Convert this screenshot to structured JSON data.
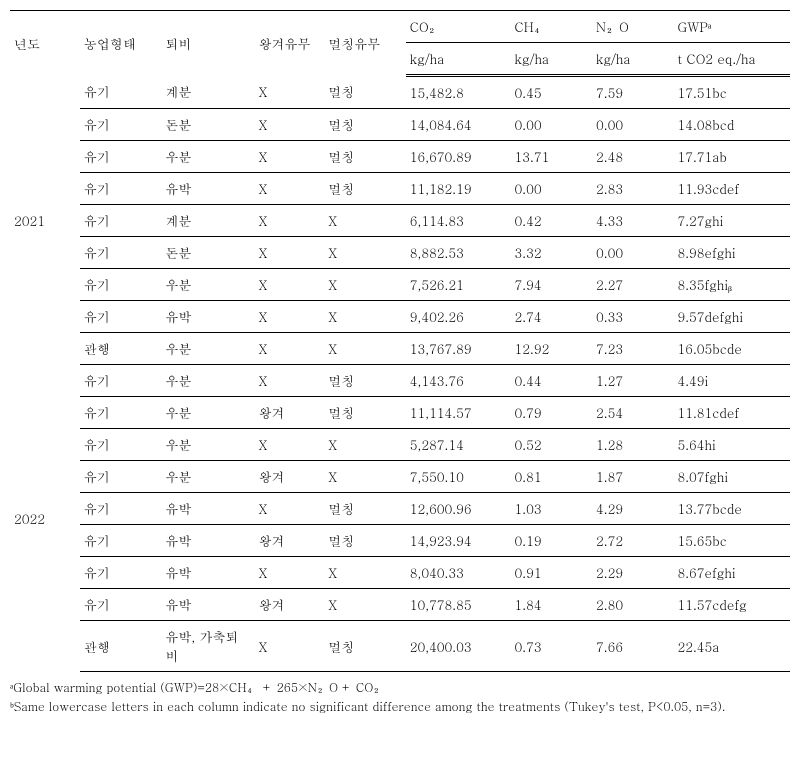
{
  "headers": {
    "year": "년도",
    "farm_type": "농업형태",
    "compost": "퇴비",
    "husk": "왕겨유무",
    "mulching": "멀칭유무",
    "co2_top": "CO₂",
    "ch4_top": "CH₄",
    "n2o_top": "N₂O",
    "gwp_top": "GWPᵃ",
    "kgha": "kg/ha",
    "gwp_unit": "t CO2 eq./ha"
  },
  "groups": [
    {
      "year": "2021",
      "rows": [
        {
          "farm": "유기",
          "compost": "계분",
          "husk": "X",
          "mulch": "멀칭",
          "co2": "15,482.8",
          "ch4": "0.45",
          "n2o": "7.59",
          "gwp": "17.51bc"
        },
        {
          "farm": "유기",
          "compost": "돈분",
          "husk": "X",
          "mulch": "멀칭",
          "co2": "14,084.64",
          "ch4": "0.00",
          "n2o": "0.00",
          "gwp": "14.08bcd"
        },
        {
          "farm": "유기",
          "compost": "우분",
          "husk": "X",
          "mulch": "멀칭",
          "co2": "16,670.89",
          "ch4": "13.71",
          "n2o": "2.48",
          "gwp": "17.71ab"
        },
        {
          "farm": "유기",
          "compost": "유박",
          "husk": "X",
          "mulch": "멀칭",
          "co2": "11,182.19",
          "ch4": "0.00",
          "n2o": "2.83",
          "gwp": "11.93cdef"
        },
        {
          "farm": "유기",
          "compost": "계분",
          "husk": "X",
          "mulch": "X",
          "co2": "6,114.83",
          "ch4": "0.42",
          "n2o": "4.33",
          "gwp": "7.27ghi"
        },
        {
          "farm": "유기",
          "compost": "돈분",
          "husk": "X",
          "mulch": "X",
          "co2": "8,882.53",
          "ch4": "3.32",
          "n2o": "0.00",
          "gwp": "8.98efghi"
        },
        {
          "farm": "유기",
          "compost": "우분",
          "husk": "X",
          "mulch": "X",
          "co2": "7,526.21",
          "ch4": "7.94",
          "n2o": "2.27",
          "gwp": "8.35fghiᵦ"
        },
        {
          "farm": "유기",
          "compost": "유박",
          "husk": "X",
          "mulch": "X",
          "co2": "9,402.26",
          "ch4": "2.74",
          "n2o": "0.33",
          "gwp": "9.57defghi"
        },
        {
          "farm": "관행",
          "compost": "우분",
          "husk": "X",
          "mulch": "X",
          "co2": "13,767.89",
          "ch4": "12.92",
          "n2o": "7.23",
          "gwp": "16.05bcde"
        }
      ]
    },
    {
      "year": "2022",
      "rows": [
        {
          "farm": "유기",
          "compost": "우분",
          "husk": "X",
          "mulch": "멀칭",
          "co2": "4,143.76",
          "ch4": "0.44",
          "n2o": "1.27",
          "gwp": "4.49i"
        },
        {
          "farm": "유기",
          "compost": "우분",
          "husk": "왕겨",
          "mulch": "멀칭",
          "co2": "11,114.57",
          "ch4": "0.79",
          "n2o": "2.54",
          "gwp": "11.81cdef"
        },
        {
          "farm": "유기",
          "compost": "우분",
          "husk": "X",
          "mulch": "X",
          "co2": "5,287.14",
          "ch4": "0.52",
          "n2o": "1.28",
          "gwp": "5.64hi"
        },
        {
          "farm": "유기",
          "compost": "우분",
          "husk": "왕겨",
          "mulch": "X",
          "co2": "7,550.10",
          "ch4": "0.81",
          "n2o": "1.87",
          "gwp": "8.07fghi"
        },
        {
          "farm": "유기",
          "compost": "유박",
          "husk": "X",
          "mulch": "멀칭",
          "co2": "12,600.96",
          "ch4": "1.03",
          "n2o": "4.29",
          "gwp": "13.77bcde"
        },
        {
          "farm": "유기",
          "compost": "유박",
          "husk": "왕겨",
          "mulch": "멀칭",
          "co2": "14,923.94",
          "ch4": "0.19",
          "n2o": "2.72",
          "gwp": "15.65bc"
        },
        {
          "farm": "유기",
          "compost": "유박",
          "husk": "X",
          "mulch": "X",
          "co2": "8,040.33",
          "ch4": "0.91",
          "n2o": "2.29",
          "gwp": "8.67efghi"
        },
        {
          "farm": "유기",
          "compost": "유박",
          "husk": "왕겨",
          "mulch": "X",
          "co2": "10,778.85",
          "ch4": "1.84",
          "n2o": "2.80",
          "gwp": "11.57cdefg"
        },
        {
          "farm": "관행",
          "compost": "유박, 가축퇴비",
          "husk": "X",
          "mulch": "멀칭",
          "co2": "20,400.03",
          "ch4": "0.73",
          "n2o": "7.66",
          "gwp": "22.45a"
        }
      ]
    }
  ],
  "footnotes": {
    "a": "ᵃGlobal warming potential (GWP)=28×CH₄ + 265×N₂O + CO₂",
    "b": "ᵇSame lowercase letters in each column indicate no significant difference among the treatments (Tukey's test, P<0.05, n=3)."
  },
  "col_widths": [
    "60px",
    "70px",
    "80px",
    "60px",
    "70px",
    "90px",
    "70px",
    "70px",
    "100px"
  ]
}
